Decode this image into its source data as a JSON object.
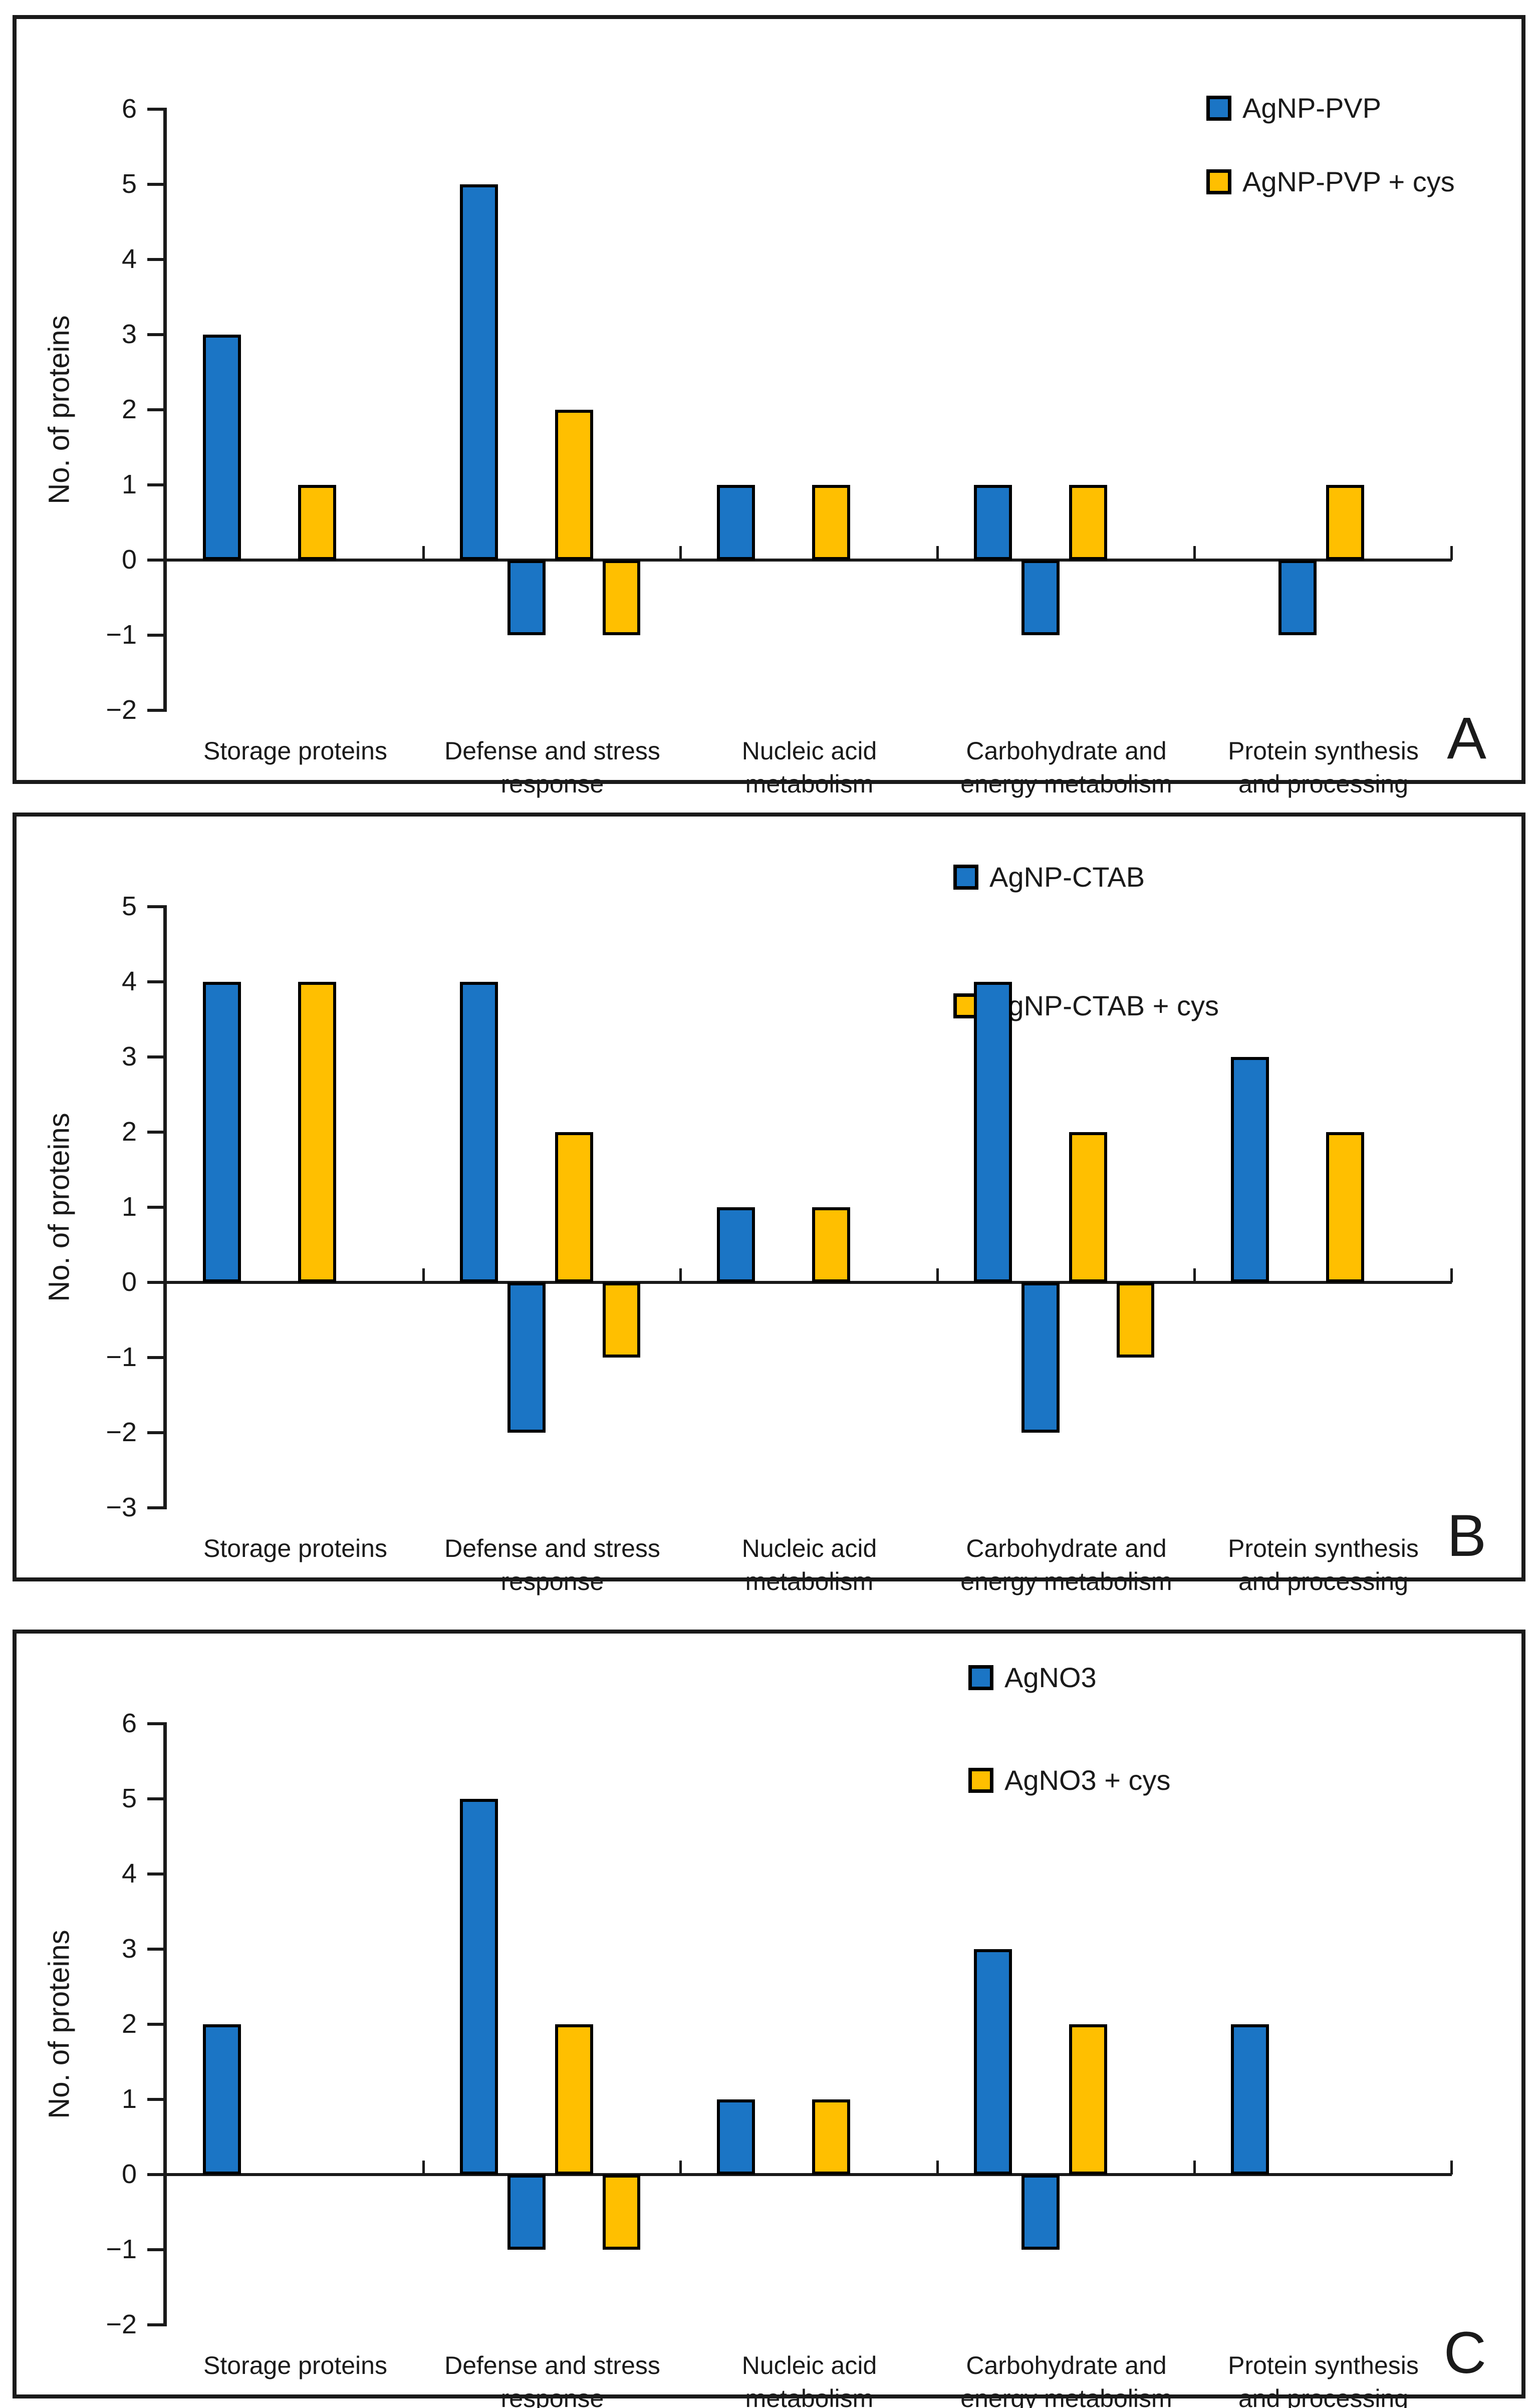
{
  "figure": {
    "ylabel": "No. of proteins",
    "colors": {
      "series1": "#1B75C5",
      "series2": "#FFBF00",
      "outline": "#000000",
      "axis": "#1a1a1a"
    }
  },
  "chart_data": [
    {
      "type": "bar",
      "panel_label": "A",
      "legend": [
        "AgNP-PVP",
        "AgNP-PVP + cys"
      ],
      "ylabel": "No. of proteins",
      "ylim": [
        -2,
        6
      ],
      "ytick_labels": [
        "6",
        "5",
        "4",
        "3",
        "2",
        "1",
        "0",
        "−1",
        "−2"
      ],
      "grid": false,
      "legend_position": "top-right-inside",
      "categories": [
        "Storage proteins",
        "Defense and stress response",
        "Nucleic acid metabolism",
        "Carbohydrate and energy metabolism",
        "Protein synthesis and processing"
      ],
      "categories_display": [
        [
          "Storage proteins"
        ],
        [
          "Defense and stress",
          "response"
        ],
        [
          "Nucleic acid",
          "metabolism"
        ],
        [
          "Carbohydrate and",
          "energy metabolism"
        ],
        [
          "Protein synthesis",
          "and processing"
        ]
      ],
      "series": [
        {
          "name": "AgNP-PVP",
          "color": "series1",
          "up": [
            3,
            5,
            1,
            1,
            0
          ],
          "down": [
            0,
            -1,
            0,
            -1,
            -1
          ]
        },
        {
          "name": "AgNP-PVP + cys",
          "color": "series2",
          "up": [
            1,
            2,
            1,
            1,
            1
          ],
          "down": [
            0,
            -1,
            0,
            0,
            0
          ]
        }
      ]
    },
    {
      "type": "bar",
      "panel_label": "B",
      "legend": [
        "AgNP-CTAB",
        "AgNP-CTAB + cys"
      ],
      "ylabel": "No. of proteins",
      "ylim": [
        -3,
        5
      ],
      "ytick_labels": [
        "5",
        "4",
        "3",
        "2",
        "1",
        "0",
        "−1",
        "−2",
        "−3"
      ],
      "grid": false,
      "legend_position": "top-right-inside",
      "categories": [
        "Storage proteins",
        "Defense and stress response",
        "Nucleic acid metabolism",
        "Carbohydrate and energy metabolism",
        "Protein synthesis and processing"
      ],
      "categories_display": [
        [
          "Storage proteins"
        ],
        [
          "Defense and stress",
          "response"
        ],
        [
          "Nucleic acid",
          "metabolism"
        ],
        [
          "Carbohydrate and",
          "energy metabolism"
        ],
        [
          "Protein synthesis",
          "and processing"
        ]
      ],
      "series": [
        {
          "name": "AgNP-CTAB",
          "color": "series1",
          "up": [
            4,
            4,
            1,
            4,
            3
          ],
          "down": [
            0,
            -2,
            0,
            -2,
            0
          ]
        },
        {
          "name": "AgNP-CTAB + cys",
          "color": "series2",
          "up": [
            4,
            2,
            1,
            2,
            2
          ],
          "down": [
            0,
            -1,
            0,
            -1,
            0
          ]
        }
      ]
    },
    {
      "type": "bar",
      "panel_label": "C",
      "legend": [
        "AgNO3",
        "AgNO3 + cys"
      ],
      "ylabel": "No. of proteins",
      "ylim": [
        -2,
        6
      ],
      "ytick_labels": [
        "6",
        "5",
        "4",
        "3",
        "2",
        "1",
        "0",
        "−1",
        "−2"
      ],
      "grid": false,
      "legend_position": "top-right-inside",
      "categories": [
        "Storage proteins",
        "Defense and stress response",
        "Nucleic acid metabolism",
        "Carbohydrate and energy metabolism",
        "Protein synthesis and processing"
      ],
      "categories_display": [
        [
          "Storage proteins"
        ],
        [
          "Defense and stress",
          "response"
        ],
        [
          "Nucleic acid",
          "metabolism"
        ],
        [
          "Carbohydrate and",
          "energy metabolism"
        ],
        [
          "Protein synthesis",
          "and processing"
        ]
      ],
      "series": [
        {
          "name": "AgNO3",
          "color": "series1",
          "up": [
            2,
            5,
            1,
            3,
            2
          ],
          "down": [
            0,
            -1,
            0,
            -1,
            0
          ]
        },
        {
          "name": "AgNO3 + cys",
          "color": "series2",
          "up": [
            0,
            2,
            1,
            2,
            0
          ],
          "down": [
            0,
            -1,
            0,
            0,
            0
          ]
        }
      ]
    }
  ]
}
